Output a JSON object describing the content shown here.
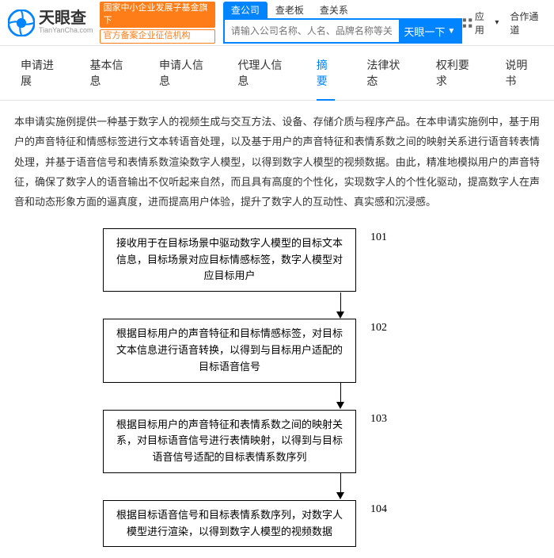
{
  "logo": {
    "main": "天眼查",
    "sub": "TianYanCha.com",
    "badge1": "国家中小企业发展子基金旗下",
    "badge2": "官方备案企业征信机构"
  },
  "search": {
    "tabs": [
      "查公司",
      "查老板",
      "查关系"
    ],
    "activeTab": 0,
    "placeholder": "请输入公司名称、人名、品牌名称等关键词",
    "button": "天眼一下"
  },
  "rightLinks": {
    "app": "应用",
    "partner": "合作通道"
  },
  "pageTabs": {
    "items": [
      "申请进展",
      "基本信息",
      "申请人信息",
      "代理人信息",
      "摘要",
      "法律状态",
      "权利要求",
      "说明书"
    ],
    "activeIndex": 4
  },
  "abstract": "本申请实施例提供一种基于数字人的视频生成与交互方法、设备、存储介质与程序产品。在本申请实施例中，基于用户的声音特征和情感标签进行文本转语音处理，以及基于用户的声音特征和表情系数之间的映射关系进行语音转表情处理，并基于语音信号和表情系数渲染数字人模型，以得到数字人模型的视频数据。由此，精准地模拟用户的声音特征，确保了数字人的语音输出不仅听起来自然，而且具有高度的个性化，实现数字人的个性化驱动，提高数字人在声音和动态形象方面的逼真度，进而提高用户体验，提升了数字人的互动性、真实感和沉浸感。",
  "flowchart": {
    "steps": [
      {
        "num": "101",
        "text": "接收用于在目标场景中驱动数字人模型的目标文本信息，目标场景对应目标情感标签，数字人模型对应目标用户"
      },
      {
        "num": "102",
        "text": "根据目标用户的声音特征和目标情感标签，对目标文本信息进行语音转换，以得到与目标用户适配的目标语音信号"
      },
      {
        "num": "103",
        "text": "根据目标用户的声音特征和表情系数之间的映射关系，对目标语音信号进行表情映射，以得到与目标语音信号适配的目标表情系数序列"
      },
      {
        "num": "104",
        "text": "根据目标语音信号和目标表情系数序列，对数字人模型进行渲染，以得到数字人模型的视频数据"
      }
    ]
  },
  "colors": {
    "primary": "#0084ff",
    "orange": "#ff7d18",
    "border": "#e4e4e4",
    "text": "#333333"
  }
}
